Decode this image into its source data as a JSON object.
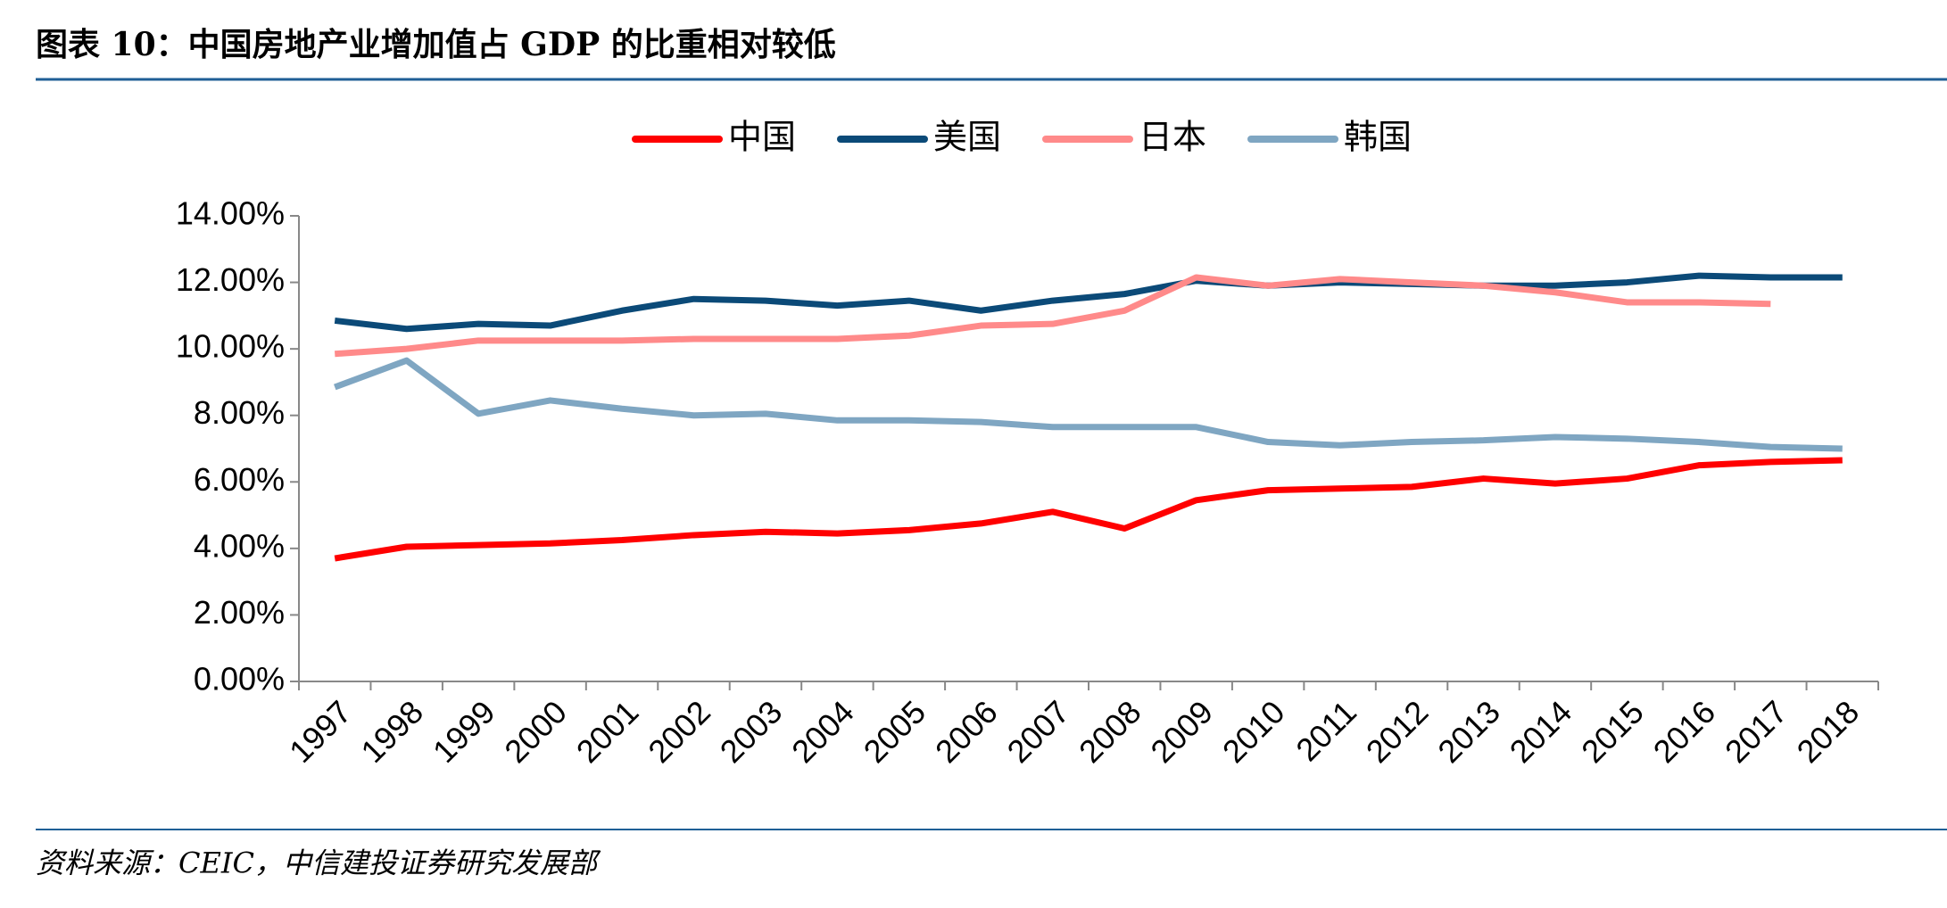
{
  "title": "图表 10：中国房地产业增加值占 GDP 的比重相对较低",
  "source": "资料来源：CEIC，中信建投证券研究发展部",
  "chart_data": {
    "type": "line",
    "categories": [
      "1997",
      "1998",
      "1999",
      "2000",
      "2001",
      "2002",
      "2003",
      "2004",
      "2005",
      "2006",
      "2007",
      "2008",
      "2009",
      "2010",
      "2011",
      "2012",
      "2013",
      "2014",
      "2015",
      "2016",
      "2017",
      "2018"
    ],
    "series": [
      {
        "name": "中国",
        "color": "#ff0000",
        "values": [
          3.7,
          4.05,
          4.1,
          4.15,
          4.25,
          4.4,
          4.5,
          4.45,
          4.55,
          4.75,
          5.1,
          4.6,
          5.45,
          5.75,
          5.8,
          5.85,
          6.1,
          5.95,
          6.1,
          6.5,
          6.6,
          6.65
        ]
      },
      {
        "name": "美国",
        "color": "#0b4a78",
        "values": [
          10.85,
          10.6,
          10.75,
          10.7,
          11.15,
          11.5,
          11.45,
          11.3,
          11.45,
          11.15,
          11.45,
          11.65,
          12.05,
          11.9,
          12.0,
          11.95,
          11.9,
          11.9,
          12.0,
          12.2,
          12.15,
          12.15
        ]
      },
      {
        "name": "日本",
        "color": "#ff8a8a",
        "values": [
          9.85,
          10.0,
          10.25,
          10.25,
          10.25,
          10.3,
          10.3,
          10.3,
          10.4,
          10.7,
          10.75,
          11.15,
          12.15,
          11.9,
          12.1,
          12.0,
          11.9,
          11.7,
          11.4,
          11.4,
          11.35,
          null
        ]
      },
      {
        "name": "韩国",
        "color": "#7fa6c2",
        "values": [
          8.85,
          9.65,
          8.05,
          8.45,
          8.2,
          8.0,
          8.05,
          7.85,
          7.85,
          7.8,
          7.65,
          7.65,
          7.65,
          7.2,
          7.1,
          7.2,
          7.25,
          7.35,
          7.3,
          7.2,
          7.05,
          7.0
        ]
      }
    ],
    "ylim": [
      0,
      14
    ],
    "yticks": [
      {
        "value": 0,
        "label": "0.00%"
      },
      {
        "value": 2,
        "label": "2.00%"
      },
      {
        "value": 4,
        "label": "4.00%"
      },
      {
        "value": 6,
        "label": "6.00%"
      },
      {
        "value": 8,
        "label": "8.00%"
      },
      {
        "value": 10,
        "label": "10.00%"
      },
      {
        "value": 12,
        "label": "12.00%"
      },
      {
        "value": 14,
        "label": "14.00%"
      }
    ],
    "legend": "top"
  }
}
